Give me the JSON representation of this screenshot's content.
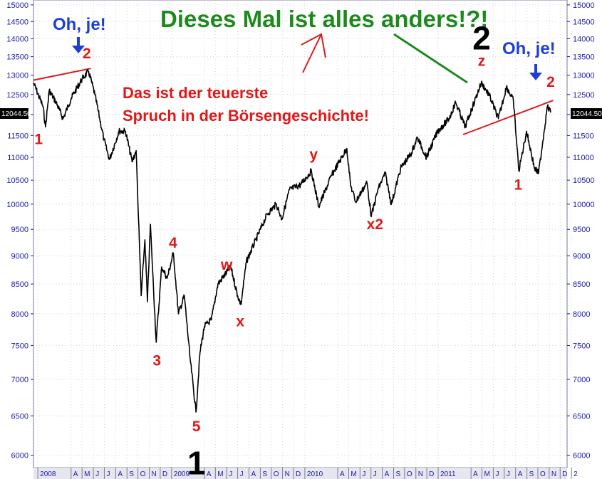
{
  "chart_data": {
    "type": "line",
    "title": "",
    "y_scale": "log",
    "ylim": [
      5850,
      15150
    ],
    "y_ticks": [
      6000,
      6500,
      7000,
      7500,
      8000,
      8500,
      9000,
      9500,
      10000,
      10500,
      11000,
      11500,
      12000,
      12500,
      13000,
      13500,
      14000,
      14500,
      15000
    ],
    "y_tick_labels": [
      "6000",
      "6500",
      "7000",
      "7500",
      "8000",
      "8500",
      "9000",
      "9500",
      "10000",
      "10500",
      "11000",
      "11500",
      "12000",
      "12500",
      "13000",
      "13500",
      "14000",
      "14500",
      "15000"
    ],
    "xlim": [
      "2007-12-20",
      "2011-12-20"
    ],
    "x_ticks": [
      {
        "label": "2008",
        "date": "2008-01-01"
      },
      {
        "label": "A",
        "date": "2008-04-01"
      },
      {
        "label": "M",
        "date": "2008-05-01"
      },
      {
        "label": "J",
        "date": "2008-06-01"
      },
      {
        "label": "J",
        "date": "2008-07-01"
      },
      {
        "label": "A",
        "date": "2008-08-01"
      },
      {
        "label": "S",
        "date": "2008-09-01"
      },
      {
        "label": "O",
        "date": "2008-10-01"
      },
      {
        "label": "N",
        "date": "2008-11-01"
      },
      {
        "label": "D",
        "date": "2008-12-01"
      },
      {
        "label": "2009",
        "date": "2009-01-01"
      },
      {
        "label": "A",
        "date": "2009-04-01"
      },
      {
        "label": "M",
        "date": "2009-05-01"
      },
      {
        "label": "J",
        "date": "2009-06-01"
      },
      {
        "label": "J",
        "date": "2009-07-01"
      },
      {
        "label": "A",
        "date": "2009-08-01"
      },
      {
        "label": "S",
        "date": "2009-09-01"
      },
      {
        "label": "O",
        "date": "2009-10-01"
      },
      {
        "label": "N",
        "date": "2009-11-01"
      },
      {
        "label": "D",
        "date": "2009-12-01"
      },
      {
        "label": "2010",
        "date": "2010-01-01"
      },
      {
        "label": "A",
        "date": "2010-04-01"
      },
      {
        "label": "M",
        "date": "2010-05-01"
      },
      {
        "label": "J",
        "date": "2010-06-01"
      },
      {
        "label": "J",
        "date": "2010-07-01"
      },
      {
        "label": "A",
        "date": "2010-08-01"
      },
      {
        "label": "S",
        "date": "2010-09-01"
      },
      {
        "label": "O",
        "date": "2010-10-01"
      },
      {
        "label": "N",
        "date": "2010-11-01"
      },
      {
        "label": "D",
        "date": "2010-12-01"
      },
      {
        "label": "2011",
        "date": "2011-01-01"
      },
      {
        "label": "A",
        "date": "2011-04-01"
      },
      {
        "label": "M",
        "date": "2011-05-01"
      },
      {
        "label": "J",
        "date": "2011-06-01"
      },
      {
        "label": "J",
        "date": "2011-07-01"
      },
      {
        "label": "A",
        "date": "2011-08-01"
      },
      {
        "label": "S",
        "date": "2011-09-01"
      },
      {
        "label": "O",
        "date": "2011-10-01"
      },
      {
        "label": "N",
        "date": "2011-11-01"
      },
      {
        "label": "D",
        "date": "2011-12-01"
      },
      {
        "label": "2",
        "date": "2012-01-01"
      }
    ],
    "last_value": "12044.50",
    "series": [
      {
        "color": "#000000",
        "points": [
          [
            "2007-12-20",
            12800
          ],
          [
            "2008-01-15",
            12200
          ],
          [
            "2008-01-22",
            11700
          ],
          [
            "2008-02-01",
            12600
          ],
          [
            "2008-02-20",
            12300
          ],
          [
            "2008-03-10",
            11900
          ],
          [
            "2008-04-01",
            12400
          ],
          [
            "2008-05-01",
            12900
          ],
          [
            "2008-05-19",
            13100
          ],
          [
            "2008-06-05",
            12500
          ],
          [
            "2008-06-30",
            11400
          ],
          [
            "2008-07-15",
            10950
          ],
          [
            "2008-08-10",
            11600
          ],
          [
            "2008-08-28",
            11600
          ],
          [
            "2008-09-15",
            10900
          ],
          [
            "2008-09-26",
            11150
          ],
          [
            "2008-10-10",
            8300
          ],
          [
            "2008-10-20",
            9300
          ],
          [
            "2008-10-27",
            8200
          ],
          [
            "2008-11-04",
            9600
          ],
          [
            "2008-11-20",
            7550
          ],
          [
            "2008-12-05",
            8800
          ],
          [
            "2008-12-20",
            8600
          ],
          [
            "2009-01-06",
            9050
          ],
          [
            "2009-01-20",
            8000
          ],
          [
            "2009-02-05",
            8300
          ],
          [
            "2009-02-20",
            7350
          ],
          [
            "2009-03-09",
            6550
          ],
          [
            "2009-03-20",
            7400
          ],
          [
            "2009-04-01",
            7800
          ],
          [
            "2009-04-20",
            7900
          ],
          [
            "2009-05-08",
            8500
          ],
          [
            "2009-06-12",
            8800
          ],
          [
            "2009-07-01",
            8300
          ],
          [
            "2009-07-10",
            8150
          ],
          [
            "2009-07-25",
            8900
          ],
          [
            "2009-08-20",
            9300
          ],
          [
            "2009-09-20",
            9800
          ],
          [
            "2009-10-15",
            10000
          ],
          [
            "2009-10-30",
            9700
          ],
          [
            "2009-11-20",
            10300
          ],
          [
            "2009-12-20",
            10400
          ],
          [
            "2010-01-19",
            10700
          ],
          [
            "2010-02-08",
            9950
          ],
          [
            "2010-03-15",
            10600
          ],
          [
            "2010-04-26",
            11200
          ],
          [
            "2010-05-06",
            10400
          ],
          [
            "2010-05-20",
            10050
          ],
          [
            "2010-06-20",
            10450
          ],
          [
            "2010-07-02",
            9750
          ],
          [
            "2010-07-20",
            10300
          ],
          [
            "2010-08-09",
            10650
          ],
          [
            "2010-08-26",
            10000
          ],
          [
            "2010-09-20",
            10750
          ],
          [
            "2010-10-20",
            11100
          ],
          [
            "2010-11-05",
            11450
          ],
          [
            "2010-11-30",
            11000
          ],
          [
            "2010-12-31",
            11600
          ],
          [
            "2011-01-31",
            11900
          ],
          [
            "2011-02-18",
            12300
          ],
          [
            "2011-03-16",
            11700
          ],
          [
            "2011-04-29",
            12800
          ],
          [
            "2011-05-20",
            12500
          ],
          [
            "2011-06-15",
            11900
          ],
          [
            "2011-07-07",
            12700
          ],
          [
            "2011-07-26",
            12350
          ],
          [
            "2011-08-10",
            10700
          ],
          [
            "2011-08-31",
            11600
          ],
          [
            "2011-09-22",
            10750
          ],
          [
            "2011-10-03",
            10650
          ],
          [
            "2011-10-27",
            12200
          ],
          [
            "2011-11-05",
            12050
          ]
        ]
      }
    ]
  },
  "annotations": {
    "headline": "Dieses Mal ist alles anders!?!",
    "oh_je_left": "Oh, je!",
    "oh_je_right": "Oh, je!",
    "quote_line1": "Das ist der teuerste",
    "quote_line2": "Spruch in der Börsengeschichte!",
    "waves": [
      {
        "label": "1",
        "date": "2008-01-03",
        "value": 11300,
        "big": false
      },
      {
        "label": "2",
        "date": "2008-05-14",
        "value": 13450,
        "big": false
      },
      {
        "label": "3",
        "date": "2008-11-22",
        "value": 7200,
        "big": false
      },
      {
        "label": "4",
        "date": "2009-01-05",
        "value": 9150,
        "big": false
      },
      {
        "label": "5",
        "date": "2009-03-10",
        "value": 6300,
        "big": false
      },
      {
        "label": "1",
        "date": "2009-03-10",
        "value": 5770,
        "big": true
      },
      {
        "label": "w",
        "date": "2009-06-01",
        "value": 8750,
        "big": false
      },
      {
        "label": "x",
        "date": "2009-07-08",
        "value": 7800,
        "big": false
      },
      {
        "label": "y",
        "date": "2010-01-25",
        "value": 10950,
        "big": false
      },
      {
        "label": "x2",
        "date": "2010-07-12",
        "value": 9500,
        "big": false
      },
      {
        "label": "z",
        "date": "2011-04-30",
        "value": 13250,
        "big": false
      },
      {
        "label": "2",
        "date": "2011-04-30",
        "value": 13700,
        "big": true
      },
      {
        "label": "1",
        "date": "2011-08-08",
        "value": 10300,
        "big": false
      },
      {
        "label": "2",
        "date": "2011-11-05",
        "value": 12700,
        "big": false
      }
    ]
  }
}
